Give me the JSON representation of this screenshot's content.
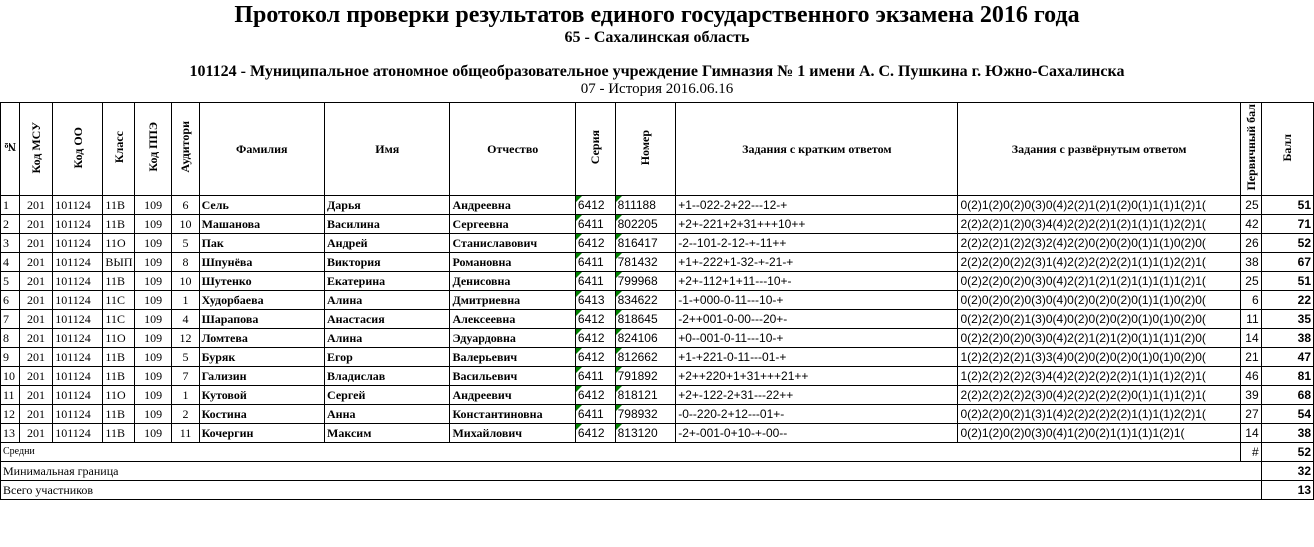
{
  "header": {
    "title": "Протокол проверки результатов единого государственного экзамена 2016 года",
    "region": "65 - Сахалинская область",
    "org": "101124 - Муниципальное атономное общеобразовательное учреждение Гимназия № 1 имени А. С. Пушкина г. Южно-Сахалинска",
    "exam": "07 - История 2016.06.16"
  },
  "columns": {
    "n": "№",
    "msu": "Код МСУ",
    "oo": "Код ОО",
    "klass": "Класс",
    "ppe": "Код ППЭ",
    "aud": "Аудитори",
    "fam": "Фамилия",
    "imya": "Имя",
    "otch": "Отчество",
    "ser": "Серия",
    "nom": "Номер",
    "zk": "Задания с кратким ответом",
    "zr": "Задания с развёрнутым ответом",
    "prv": "Первичный бал",
    "ball": "Балл"
  },
  "rows": [
    {
      "n": "1",
      "msu": "201",
      "oo": "101124",
      "klass": "11В",
      "ppe": "109",
      "aud": "6",
      "fam": "Сель",
      "imya": "Дарья",
      "otch": "Андреевна",
      "ser": "6412",
      "nom": "811188",
      "zk": "+1--022-2+22---12-+",
      "zr": "0(2)1(2)0(2)0(3)0(4)2(2)1(2)1(2)0(1)1(1)1(2)1(",
      "prv": "25",
      "ball": "51"
    },
    {
      "n": "2",
      "msu": "201",
      "oo": "101124",
      "klass": "11В",
      "ppe": "109",
      "aud": "10",
      "fam": "Машанова",
      "imya": "Василина",
      "otch": "Сергеевна",
      "ser": "6411",
      "nom": "802205",
      "zk": "+2+-221+2+31+++10++",
      "zr": "2(2)2(2)1(2)0(3)4(4)2(2)2(2)1(2)1(1)1(1)2(2)1(",
      "prv": "42",
      "ball": "71"
    },
    {
      "n": "3",
      "msu": "201",
      "oo": "101124",
      "klass": "11О",
      "ppe": "109",
      "aud": "5",
      "fam": "Пак",
      "imya": "Андрей",
      "otch": "Станиславович",
      "ser": "6412",
      "nom": "816417",
      "zk": "-2--101-2-12-+-11++",
      "zr": "2(2)2(2)1(2)2(3)2(4)2(2)0(2)0(2)0(1)1(1)0(2)0(",
      "prv": "26",
      "ball": "52"
    },
    {
      "n": "4",
      "msu": "201",
      "oo": "101124",
      "klass": "ВЫП",
      "ppe": "109",
      "aud": "8",
      "fam": "Шпунёва",
      "imya": "Виктория",
      "otch": "Романовна",
      "ser": "6411",
      "nom": "781432",
      "zk": "+1+-222+1-32-+-21-+",
      "zr": "2(2)2(2)0(2)2(3)1(4)2(2)2(2)2(2)1(1)1(1)2(2)1(",
      "prv": "38",
      "ball": "67"
    },
    {
      "n": "5",
      "msu": "201",
      "oo": "101124",
      "klass": "11В",
      "ppe": "109",
      "aud": "10",
      "fam": "Шутенко",
      "imya": "Екатерина",
      "otch": "Денисовна",
      "ser": "6411",
      "nom": "799968",
      "zk": "+2+-112+1+11---10+-",
      "zr": "0(2)2(2)0(2)0(3)0(4)2(2)1(2)1(2)1(1)1(1)1(2)1(",
      "prv": "25",
      "ball": "51"
    },
    {
      "n": "6",
      "msu": "201",
      "oo": "101124",
      "klass": "11С",
      "ppe": "109",
      "aud": "1",
      "fam": "Худорбаева",
      "imya": "Алина",
      "otch": "Дмитриевна",
      "ser": "6413",
      "nom": "834622",
      "zk": "-1-+000-0-11---10-+",
      "zr": "0(2)0(2)0(2)0(3)0(4)0(2)0(2)0(2)0(1)1(1)0(2)0(",
      "prv": "6",
      "ball": "22"
    },
    {
      "n": "7",
      "msu": "201",
      "oo": "101124",
      "klass": "11С",
      "ppe": "109",
      "aud": "4",
      "fam": "Шарапова",
      "imya": "Анастасия",
      "otch": "Алексеевна",
      "ser": "6412",
      "nom": "818645",
      "zk": "-2++001-0-00---20+-",
      "zr": "0(2)2(2)0(2)1(3)0(4)0(2)0(2)0(2)0(1)0(1)0(2)0(",
      "prv": "11",
      "ball": "35"
    },
    {
      "n": "8",
      "msu": "201",
      "oo": "101124",
      "klass": "11О",
      "ppe": "109",
      "aud": "12",
      "fam": "Ломтева",
      "imya": "Алина",
      "otch": "Эдуардовна",
      "ser": "6412",
      "nom": "824106",
      "zk": "+0--001-0-11---10-+",
      "zr": "0(2)2(2)0(2)0(3)0(4)2(2)1(2)1(2)0(1)1(1)1(2)0(",
      "prv": "14",
      "ball": "38"
    },
    {
      "n": "9",
      "msu": "201",
      "oo": "101124",
      "klass": "11В",
      "ppe": "109",
      "aud": "5",
      "fam": "Буряк",
      "imya": "Егор",
      "otch": "Валерьевич",
      "ser": "6412",
      "nom": "812662",
      "zk": "+1-+221-0-11---01-+",
      "zr": "1(2)2(2)2(2)1(3)3(4)0(2)0(2)0(2)0(1)0(1)0(2)0(",
      "prv": "21",
      "ball": "47"
    },
    {
      "n": "10",
      "msu": "201",
      "oo": "101124",
      "klass": "11В",
      "ppe": "109",
      "aud": "7",
      "fam": "Гализин",
      "imya": "Владислав",
      "otch": "Васильевич",
      "ser": "6411",
      "nom": "791892",
      "zk": "+2++220+1+31+++21++",
      "zr": "1(2)2(2)2(2)2(3)4(4)2(2)2(2)2(2)1(1)1(1)2(2)1(",
      "prv": "46",
      "ball": "81"
    },
    {
      "n": "11",
      "msu": "201",
      "oo": "101124",
      "klass": "11О",
      "ppe": "109",
      "aud": "1",
      "fam": "Кутовой",
      "imya": "Сергей",
      "otch": "Андреевич",
      "ser": "6412",
      "nom": "818121",
      "zk": "+2+-122-2+31---22++",
      "zr": "2(2)2(2)2(2)2(3)0(4)2(2)2(2)2(2)0(1)1(1)1(2)1(",
      "prv": "39",
      "ball": "68"
    },
    {
      "n": "12",
      "msu": "201",
      "oo": "101124",
      "klass": "11В",
      "ppe": "109",
      "aud": "2",
      "fam": "Костина",
      "imya": "Анна",
      "otch": "Константиновна",
      "ser": "6411",
      "nom": "798932",
      "zk": "-0--220-2+12---01+-",
      "zr": "0(2)2(2)0(2)1(3)1(4)2(2)2(2)2(2)1(1)1(1)2(2)1(",
      "prv": "27",
      "ball": "54"
    },
    {
      "n": "13",
      "msu": "201",
      "oo": "101124",
      "klass": "11В",
      "ppe": "109",
      "aud": "11",
      "fam": "Кочергин",
      "imya": "Максим",
      "otch": "Михайлович",
      "ser": "6412",
      "nom": "813120",
      "zk": "-2+-001-0+10-+-00--",
      "zr": "0(2)1(2)0(2)0(3)0(4)1(2)0(2)1(1)1(1)1(2)1(",
      "prv": "14",
      "ball": "38"
    }
  ],
  "footer": {
    "sredni_label": "Средни",
    "sredni_prv": "#",
    "sredni_ball": "52",
    "min_label": "Минимальная граница",
    "min_val": "32",
    "total_label": "Всего участников",
    "total_val": "13"
  }
}
